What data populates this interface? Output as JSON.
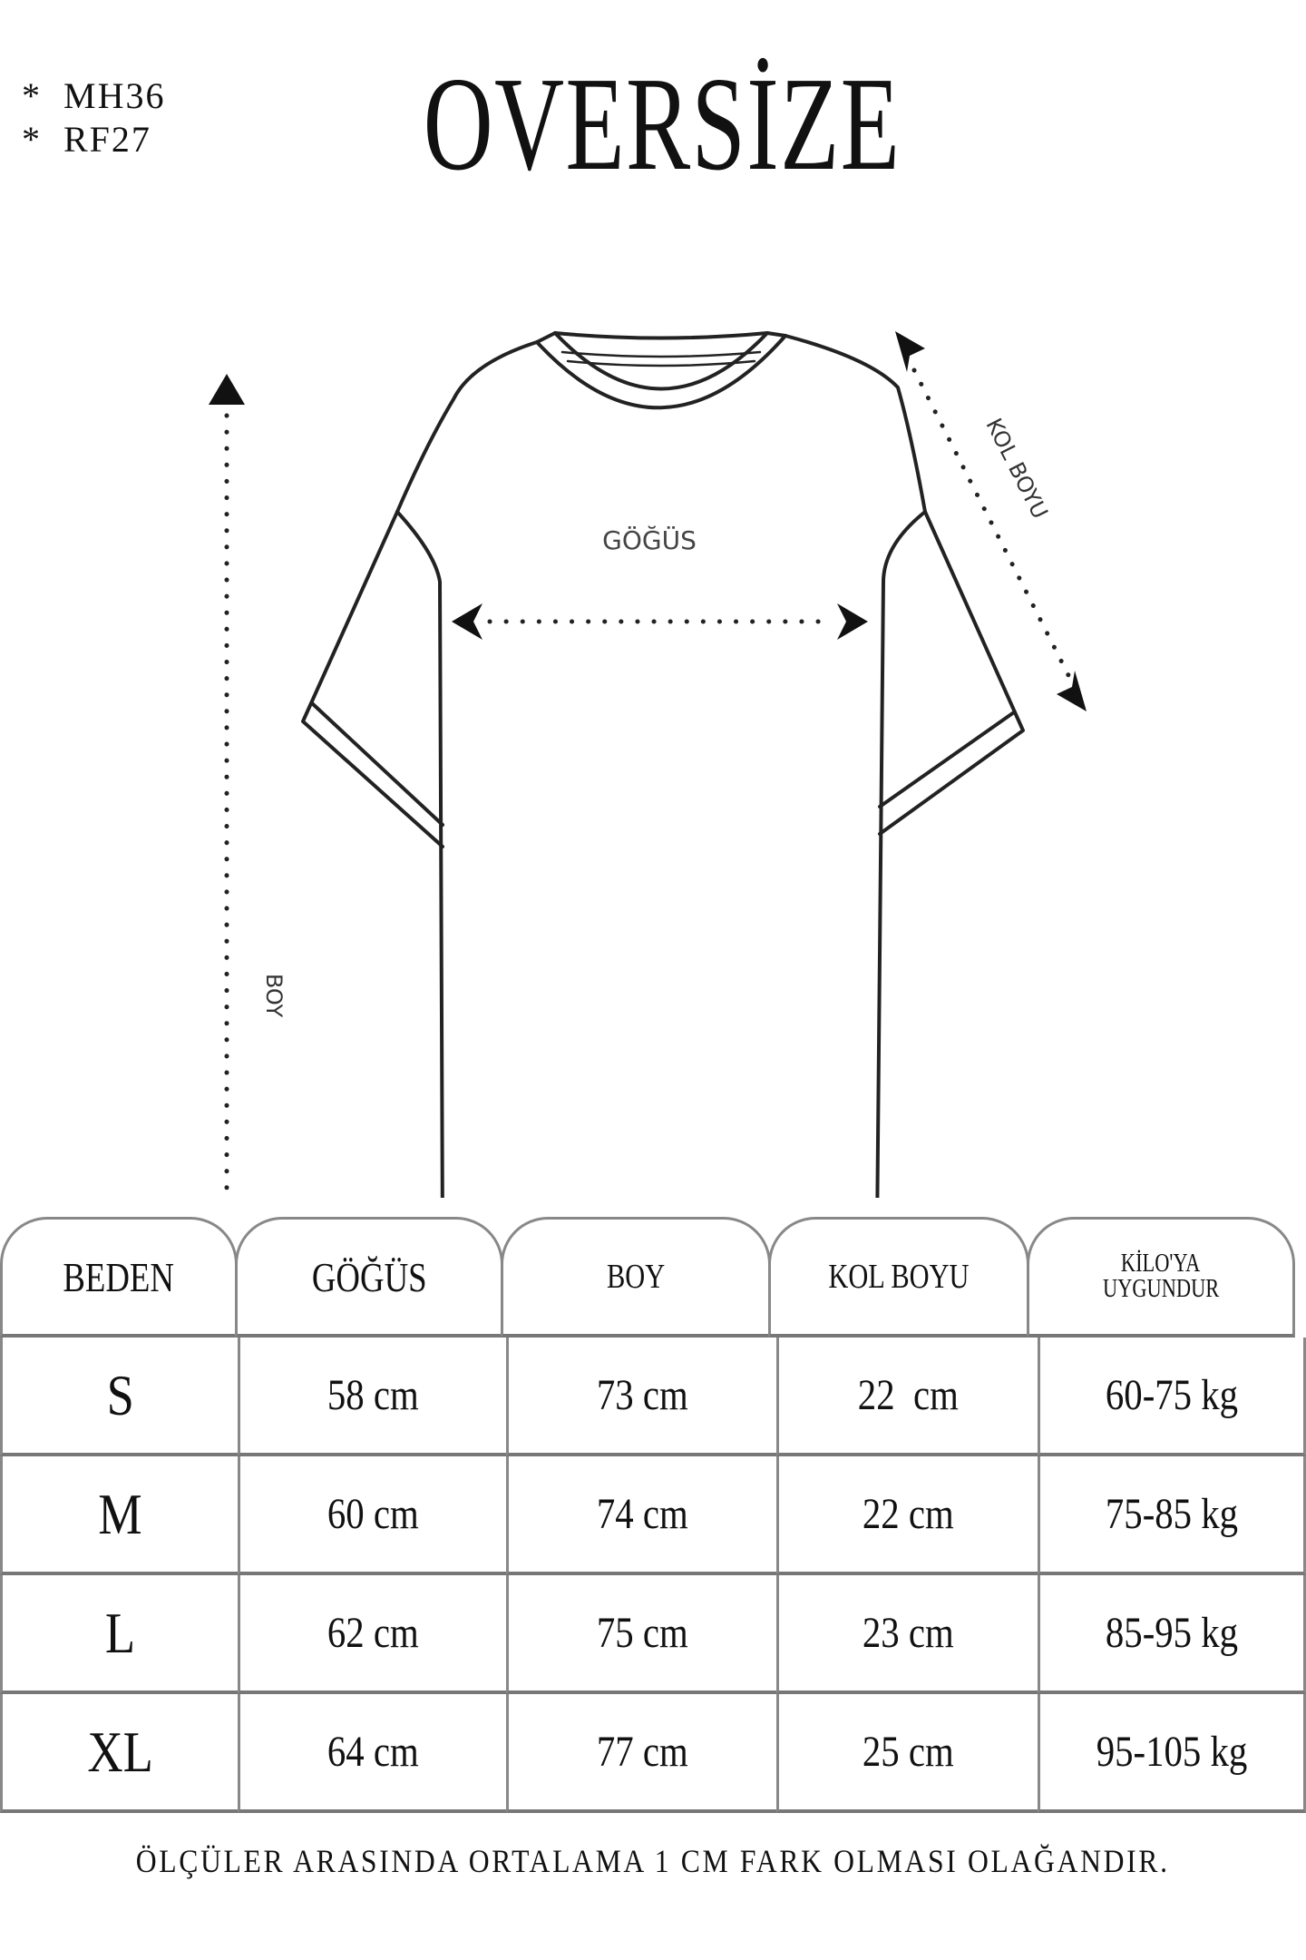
{
  "codes": [
    "*  MH36",
    "*  RF27"
  ],
  "title": "OVERSİZE",
  "diagram": {
    "chest_label": "GÖĞÜS",
    "length_label": "BOY",
    "sleeve_label": "KOL BOYU"
  },
  "table": {
    "headers": [
      "BEDEN",
      "GÖĞÜS",
      "BOY",
      "KOL BOYU",
      [
        "KİLO'YA",
        "UYGUNDUR"
      ]
    ],
    "rows": [
      [
        "S",
        "58 cm",
        "73 cm",
        "22  cm",
        "60-75 kg"
      ],
      [
        "M",
        "60 cm",
        "74 cm",
        "22 cm",
        "75-85 kg"
      ],
      [
        "L",
        "62 cm",
        "75 cm",
        "23 cm",
        "85-95 kg"
      ],
      [
        "XL",
        "64 cm",
        "77 cm",
        "25 cm",
        "95-105 kg"
      ]
    ]
  },
  "footer": "ÖLÇÜLER ARASINDA ORTALAMA 1 CM FARK OLMASI OLAĞANDIR."
}
